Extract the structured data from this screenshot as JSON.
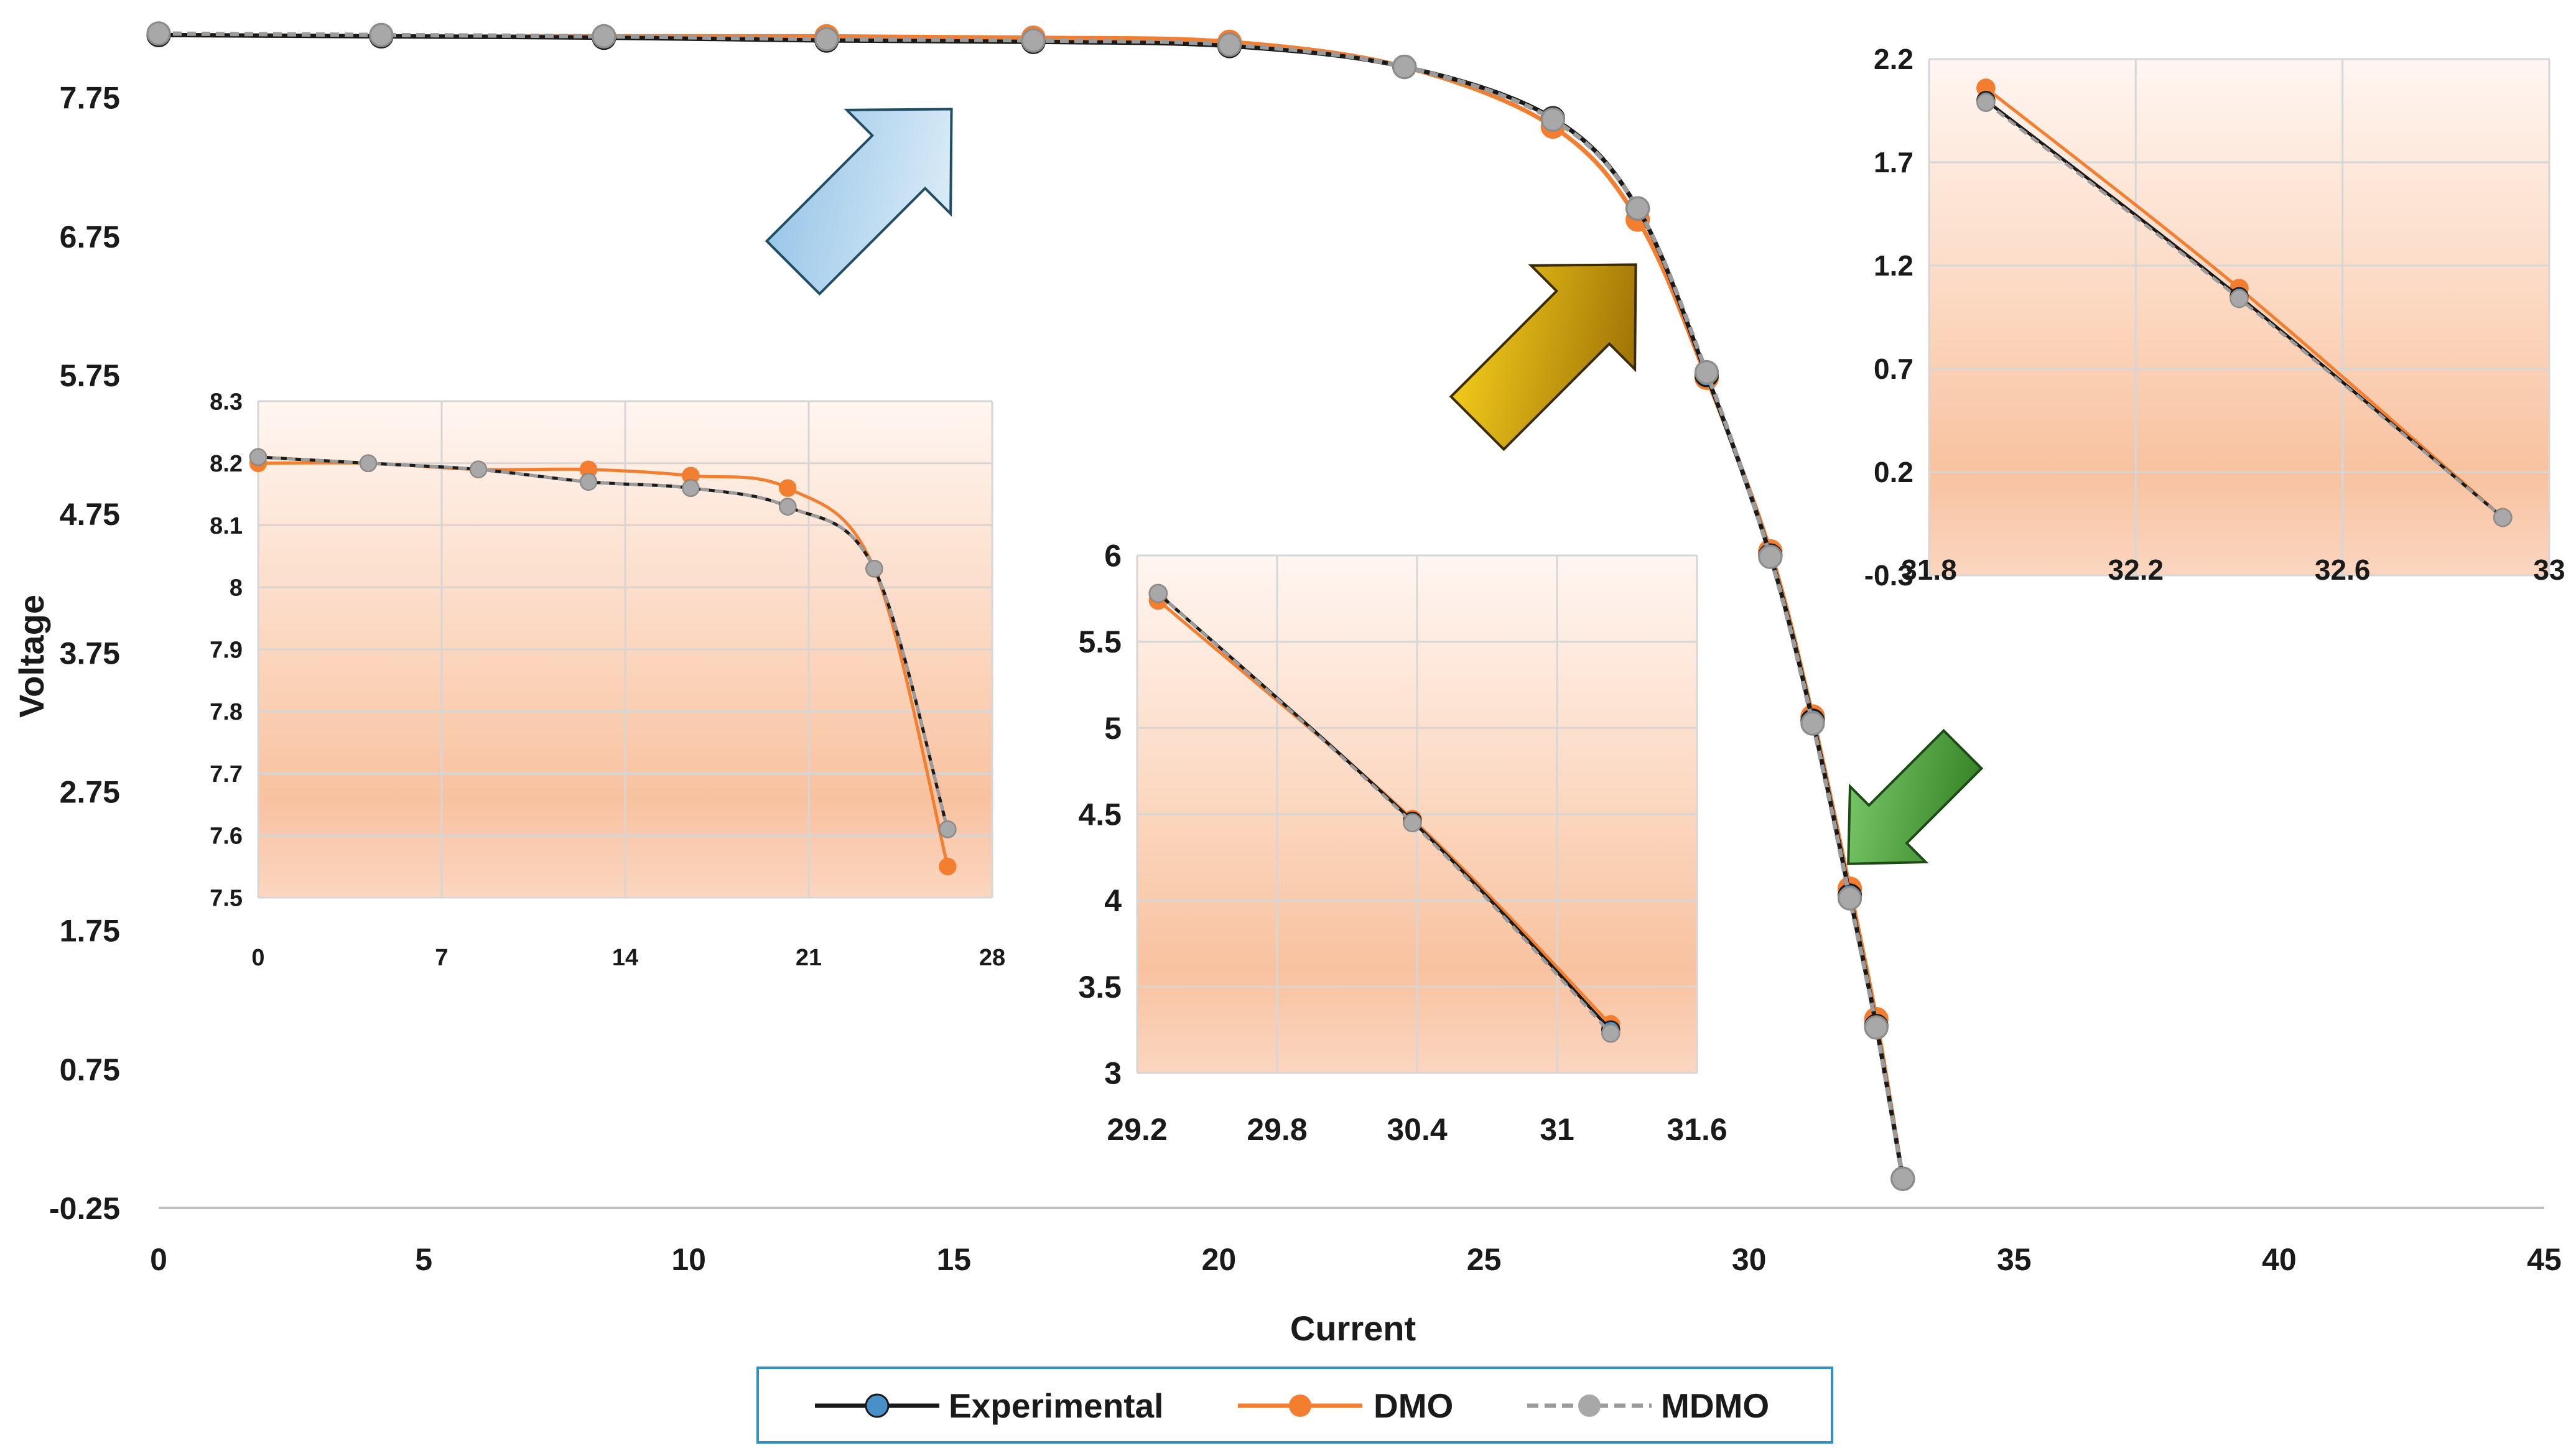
{
  "chart_data": [
    {
      "id": "main",
      "type": "line",
      "xlabel": "Current",
      "ylabel": "Voltage",
      "xlim": [
        0,
        45
      ],
      "ylim": [
        -0.25,
        8.25
      ],
      "x_ticks": [
        0,
        5,
        10,
        15,
        20,
        25,
        30,
        35,
        40,
        45
      ],
      "y_ticks": [
        -0.25,
        0.75,
        1.75,
        2.75,
        3.75,
        4.75,
        5.75,
        6.75,
        7.75
      ],
      "x_tick_labels": [
        "0",
        "5",
        "10",
        "15",
        "20",
        "25",
        "30",
        "35",
        "40",
        "45"
      ],
      "y_tick_labels": [
        "-0.25",
        "0.75",
        "1.75",
        "2.75",
        "3.75",
        "4.75",
        "5.75",
        "6.75",
        "7.75"
      ],
      "grid": false,
      "series": [
        {
          "name": "Experimental",
          "color": "#1a1a1a",
          "marker_color": "#4a90c8",
          "x": [
            0,
            4.2,
            8.4,
            12.6,
            16.5,
            20.2,
            23.5,
            26.3,
            27.9,
            29.2,
            30.4,
            31.2,
            31.9,
            32.4,
            32.9
          ],
          "y": [
            8.2,
            8.19,
            8.18,
            8.16,
            8.15,
            8.12,
            7.97,
            7.6,
            6.95,
            5.75,
            4.45,
            3.26,
            2.0,
            1.06,
            -0.04
          ]
        },
        {
          "name": "DMO",
          "color": "#f47e2f",
          "marker_color": "#f47e2f",
          "x": [
            0,
            4.2,
            8.4,
            12.6,
            16.5,
            20.2,
            23.5,
            26.3,
            27.9,
            29.2,
            30.4,
            31.2,
            31.9,
            32.4,
            32.9
          ],
          "y": [
            8.2,
            8.19,
            8.19,
            8.19,
            8.18,
            8.15,
            7.97,
            7.54,
            6.87,
            5.73,
            4.48,
            3.29,
            2.05,
            1.11,
            -0.04
          ]
        },
        {
          "name": "MDMO",
          "color": "#9b9b9b",
          "marker_color": "#a8a8a8",
          "x": [
            0,
            4.2,
            8.4,
            12.6,
            16.5,
            20.2,
            23.5,
            26.3,
            27.9,
            29.2,
            30.4,
            31.2,
            31.9,
            32.4,
            32.9
          ],
          "y": [
            8.21,
            8.2,
            8.19,
            8.17,
            8.16,
            8.13,
            7.97,
            7.59,
            6.95,
            5.77,
            4.44,
            3.24,
            1.98,
            1.05,
            -0.04
          ]
        }
      ]
    },
    {
      "id": "inset1",
      "type": "line",
      "xlim": [
        0,
        28
      ],
      "ylim": [
        7.5,
        8.3
      ],
      "x_ticks": [
        0,
        7,
        14,
        21,
        28
      ],
      "y_ticks": [
        7.5,
        7.6,
        7.7,
        7.8,
        7.9,
        8,
        8.1,
        8.2,
        8.3
      ],
      "x_tick_labels": [
        "0",
        "7",
        "14",
        "21",
        "28"
      ],
      "y_tick_labels": [
        "7.5",
        "7.6",
        "7.7",
        "7.8",
        "7.9",
        "8",
        "8.1",
        "8.2",
        "8.3"
      ],
      "grid": true,
      "series": [
        {
          "name": "Experimental",
          "x": [
            0,
            4.2,
            8.4,
            12.6,
            16.5,
            20.2,
            23.5,
            26.3
          ],
          "y": [
            8.21,
            8.2,
            8.19,
            8.17,
            8.16,
            8.13,
            8.03,
            7.61
          ]
        },
        {
          "name": "DMO",
          "x": [
            0,
            4.2,
            8.4,
            12.6,
            16.5,
            20.2,
            23.5,
            26.3
          ],
          "y": [
            8.2,
            8.2,
            8.19,
            8.19,
            8.18,
            8.16,
            8.03,
            7.55
          ]
        },
        {
          "name": "MDMO",
          "x": [
            0,
            4.2,
            8.4,
            12.6,
            16.5,
            20.2,
            23.5,
            26.3
          ],
          "y": [
            8.21,
            8.2,
            8.19,
            8.17,
            8.16,
            8.13,
            8.03,
            7.61
          ]
        }
      ]
    },
    {
      "id": "inset2",
      "type": "line",
      "xlim": [
        29.2,
        31.6
      ],
      "ylim": [
        3,
        6
      ],
      "x_ticks": [
        29.2,
        29.8,
        30.4,
        31,
        31.6
      ],
      "y_ticks": [
        3,
        3.5,
        4,
        4.5,
        5,
        5.5,
        6
      ],
      "x_tick_labels": [
        "29.2",
        "29.8",
        "30.4",
        "31",
        "31.6"
      ],
      "y_tick_labels": [
        "3",
        "3.5",
        "4",
        "4.5",
        "5",
        "5.5",
        "6"
      ],
      "grid": true,
      "series": [
        {
          "name": "Experimental",
          "x": [
            29.29,
            30.38,
            31.23
          ],
          "y": [
            5.78,
            4.46,
            3.25
          ]
        },
        {
          "name": "DMO",
          "x": [
            29.29,
            30.38,
            31.23
          ],
          "y": [
            5.74,
            4.47,
            3.28
          ]
        },
        {
          "name": "MDMO",
          "x": [
            29.29,
            30.38,
            31.23
          ],
          "y": [
            5.78,
            4.45,
            3.23
          ]
        }
      ]
    },
    {
      "id": "inset3",
      "type": "line",
      "xlim": [
        31.8,
        33
      ],
      "ylim": [
        -0.3,
        2.2
      ],
      "x_ticks": [
        31.8,
        32.2,
        32.6,
        33
      ],
      "y_ticks": [
        -0.3,
        0.2,
        0.7,
        1.2,
        1.7,
        2.2
      ],
      "x_tick_labels": [
        "31.8",
        "32.2",
        "32.6",
        "33"
      ],
      "y_tick_labels": [
        "-0.3",
        "0.2",
        "0.7",
        "1.2",
        "1.7",
        "2.2"
      ],
      "grid": true,
      "series": [
        {
          "name": "Experimental",
          "x": [
            31.91,
            32.4,
            32.91
          ],
          "y": [
            2.0,
            1.05,
            -0.02
          ]
        },
        {
          "name": "DMO",
          "x": [
            31.91,
            32.4,
            32.91
          ],
          "y": [
            2.06,
            1.09,
            -0.02
          ]
        },
        {
          "name": "MDMO",
          "x": [
            31.91,
            32.4,
            32.91
          ],
          "y": [
            1.99,
            1.04,
            -0.02
          ]
        }
      ]
    }
  ],
  "legend": {
    "placement": "bottom-center",
    "items": [
      {
        "label": "Experimental",
        "line_color": "#1a1a1a",
        "marker_color": "#4a90c8",
        "dashed": false
      },
      {
        "label": "DMO",
        "line_color": "#f47e2f",
        "marker_color": "#f47e2f",
        "dashed": false
      },
      {
        "label": "MDMO",
        "line_color": "#9b9b9b",
        "marker_color": "#a8a8a8",
        "dashed": true
      }
    ],
    "border_color": "#2f8fc6"
  },
  "arrows": [
    {
      "name": "blue-arrow",
      "color_light": "#e6f2fb",
      "color_dark": "#8fc1e6"
    },
    {
      "name": "gold-arrow",
      "color_light": "#ffd21a",
      "color_dark": "#9a6a00"
    },
    {
      "name": "green-arrow",
      "color_light": "#7fd06f",
      "color_dark": "#2e7d1e"
    }
  ]
}
